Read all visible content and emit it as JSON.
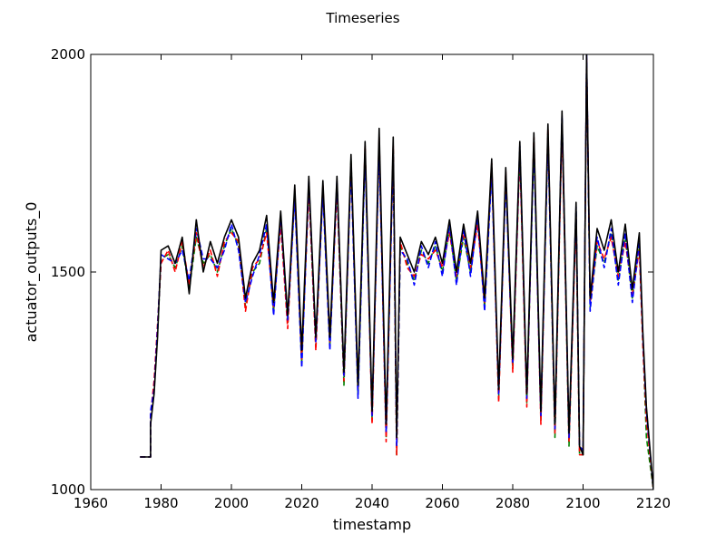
{
  "chart_data": {
    "type": "line",
    "title": "Timeseries",
    "xlabel": "timestamp",
    "ylabel": "actuator_outputs_0",
    "xlim": [
      1960,
      2120
    ],
    "ylim": [
      1000,
      2000
    ],
    "x_ticks": [
      1960,
      1980,
      2000,
      2020,
      2040,
      2060,
      2080,
      2100,
      2120
    ],
    "y_ticks": [
      1000,
      1500,
      2000
    ],
    "grid": false,
    "legend": "none",
    "series": [
      {
        "color": "#008000",
        "style": "dashed",
        "x": [
          1974,
          1977,
          1977,
          1978,
          1979,
          1980,
          1982,
          1984,
          1986,
          1988,
          1990,
          1992,
          1994,
          1996,
          1998,
          2000,
          2002,
          2004,
          2006,
          2008,
          2010,
          2012,
          2014,
          2016,
          2018,
          2020,
          2022,
          2024,
          2026,
          2028,
          2030,
          2032,
          2034,
          2036,
          2038,
          2040,
          2042,
          2044,
          2046,
          2047,
          2048,
          2050,
          2052,
          2054,
          2056,
          2058,
          2060,
          2062,
          2064,
          2066,
          2068,
          2070,
          2072,
          2074,
          2076,
          2078,
          2080,
          2082,
          2084,
          2086,
          2088,
          2090,
          2092,
          2094,
          2096,
          2098,
          2099,
          2100,
          2101,
          2102,
          2104,
          2106,
          2108,
          2110,
          2112,
          2114,
          2116,
          2117,
          2118,
          2120
        ],
        "y": [
          1075,
          1075,
          1160,
          1240,
          1360,
          1530,
          1540,
          1510,
          1560,
          1460,
          1580,
          1520,
          1540,
          1500,
          1560,
          1600,
          1560,
          1420,
          1500,
          1520,
          1600,
          1410,
          1620,
          1380,
          1680,
          1290,
          1700,
          1330,
          1690,
          1330,
          1700,
          1240,
          1760,
          1220,
          1780,
          1160,
          1800,
          1120,
          1780,
          1080,
          1560,
          1520,
          1480,
          1550,
          1520,
          1560,
          1500,
          1600,
          1480,
          1580,
          1500,
          1620,
          1420,
          1740,
          1210,
          1720,
          1280,
          1780,
          1200,
          1800,
          1160,
          1820,
          1120,
          1850,
          1100,
          1640,
          1080,
          1080,
          1980,
          1420,
          1560,
          1520,
          1590,
          1480,
          1580,
          1440,
          1560,
          1340,
          1120,
          1000
        ]
      },
      {
        "color": "#ff0000",
        "style": "dashed",
        "x": [
          1974,
          1977,
          1977,
          1978,
          1979,
          1980,
          1982,
          1984,
          1986,
          1988,
          1990,
          1992,
          1994,
          1996,
          1998,
          2000,
          2002,
          2004,
          2006,
          2008,
          2010,
          2012,
          2014,
          2016,
          2018,
          2020,
          2022,
          2024,
          2026,
          2028,
          2030,
          2032,
          2034,
          2036,
          2038,
          2040,
          2042,
          2044,
          2046,
          2047,
          2048,
          2050,
          2052,
          2054,
          2056,
          2058,
          2060,
          2062,
          2064,
          2066,
          2068,
          2070,
          2072,
          2074,
          2076,
          2078,
          2080,
          2082,
          2084,
          2086,
          2088,
          2090,
          2092,
          2094,
          2096,
          2098,
          2099,
          2100,
          2101,
          2102,
          2104,
          2106,
          2108,
          2110,
          2112,
          2114,
          2116,
          2117,
          2118,
          2120
        ],
        "y": [
          1075,
          1075,
          1170,
          1250,
          1380,
          1520,
          1550,
          1500,
          1570,
          1470,
          1590,
          1510,
          1550,
          1490,
          1570,
          1590,
          1570,
          1410,
          1510,
          1530,
          1590,
          1420,
          1610,
          1370,
          1690,
          1300,
          1690,
          1320,
          1700,
          1340,
          1690,
          1250,
          1750,
          1230,
          1790,
          1150,
          1810,
          1110,
          1790,
          1080,
          1570,
          1510,
          1490,
          1540,
          1530,
          1550,
          1510,
          1590,
          1490,
          1590,
          1510,
          1610,
          1430,
          1750,
          1200,
          1730,
          1270,
          1770,
          1190,
          1810,
          1150,
          1830,
          1130,
          1840,
          1110,
          1630,
          1080,
          1080,
          1990,
          1430,
          1570,
          1530,
          1580,
          1490,
          1570,
          1450,
          1550,
          1330,
          1160,
          1000
        ]
      },
      {
        "color": "#0000ff",
        "style": "dashed",
        "x": [
          1974,
          1977,
          1977,
          1978,
          1979,
          1980,
          1982,
          1984,
          1986,
          1988,
          1990,
          1992,
          1994,
          1996,
          1998,
          2000,
          2002,
          2004,
          2006,
          2008,
          2010,
          2012,
          2014,
          2016,
          2018,
          2020,
          2022,
          2024,
          2026,
          2028,
          2030,
          2032,
          2034,
          2036,
          2038,
          2040,
          2042,
          2044,
          2046,
          2047,
          2048,
          2050,
          2052,
          2054,
          2056,
          2058,
          2060,
          2062,
          2064,
          2066,
          2068,
          2070,
          2072,
          2074,
          2076,
          2078,
          2080,
          2082,
          2084,
          2086,
          2088,
          2090,
          2092,
          2094,
          2096,
          2098,
          2099,
          2100,
          2101,
          2102,
          2104,
          2106,
          2108,
          2110,
          2112,
          2114,
          2116,
          2117,
          2118,
          2120
        ],
        "y": [
          1075,
          1075,
          1180,
          1230,
          1370,
          1540,
          1530,
          1520,
          1550,
          1480,
          1600,
          1530,
          1530,
          1510,
          1550,
          1610,
          1550,
          1430,
          1490,
          1540,
          1610,
          1400,
          1630,
          1390,
          1670,
          1280,
          1710,
          1340,
          1680,
          1320,
          1710,
          1260,
          1740,
          1210,
          1770,
          1170,
          1790,
          1130,
          1770,
          1100,
          1550,
          1530,
          1470,
          1560,
          1510,
          1570,
          1490,
          1610,
          1470,
          1600,
          1490,
          1630,
          1410,
          1730,
          1220,
          1710,
          1290,
          1790,
          1210,
          1790,
          1170,
          1810,
          1140,
          1860,
          1120,
          1650,
          1100,
          1090,
          2000,
          1410,
          1580,
          1510,
          1600,
          1470,
          1590,
          1430,
          1570,
          1350,
          1180,
          1000
        ]
      },
      {
        "color": "#000000",
        "style": "solid",
        "x": [
          1974,
          1977,
          1977,
          1978,
          1979,
          1980,
          1982,
          1984,
          1986,
          1988,
          1990,
          1992,
          1994,
          1996,
          1998,
          2000,
          2002,
          2004,
          2006,
          2008,
          2010,
          2012,
          2014,
          2016,
          2018,
          2020,
          2022,
          2024,
          2026,
          2028,
          2030,
          2032,
          2034,
          2036,
          2038,
          2040,
          2042,
          2044,
          2046,
          2047,
          2048,
          2050,
          2052,
          2054,
          2056,
          2058,
          2060,
          2062,
          2064,
          2066,
          2068,
          2070,
          2072,
          2074,
          2076,
          2078,
          2080,
          2082,
          2084,
          2086,
          2088,
          2090,
          2092,
          2094,
          2096,
          2098,
          2099,
          2100,
          2101,
          2102,
          2104,
          2106,
          2108,
          2110,
          2112,
          2114,
          2116,
          2117,
          2118,
          2120
        ],
        "y": [
          1075,
          1075,
          1150,
          1220,
          1350,
          1550,
          1560,
          1520,
          1580,
          1450,
          1620,
          1500,
          1570,
          1520,
          1580,
          1620,
          1580,
          1440,
          1520,
          1550,
          1630,
          1430,
          1640,
          1400,
          1700,
          1320,
          1720,
          1350,
          1710,
          1350,
          1720,
          1270,
          1770,
          1240,
          1800,
          1180,
          1830,
          1150,
          1810,
          1120,
          1580,
          1540,
          1500,
          1570,
          1540,
          1580,
          1520,
          1620,
          1500,
          1610,
          1520,
          1640,
          1440,
          1760,
          1230,
          1740,
          1300,
          1800,
          1220,
          1820,
          1180,
          1840,
          1150,
          1870,
          1130,
          1660,
          1100,
          1080,
          2000,
          1440,
          1600,
          1550,
          1620,
          1500,
          1610,
          1460,
          1590,
          1360,
          1190,
          1000
        ]
      }
    ]
  }
}
